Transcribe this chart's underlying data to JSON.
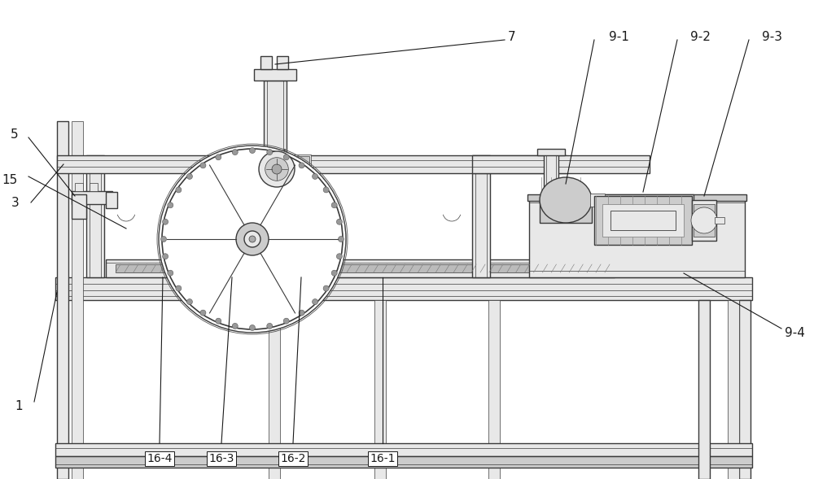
{
  "bg_color": "#ffffff",
  "lc": "#3a3a3a",
  "lc_thin": "#555555",
  "fl": "#e8e8e8",
  "fm": "#cccccc",
  "fd": "#aaaaaa",
  "lw_main": 1.0,
  "lw_thin": 0.5,
  "lw_thick": 1.5,
  "label_fs": 11,
  "ann_fs": 11
}
